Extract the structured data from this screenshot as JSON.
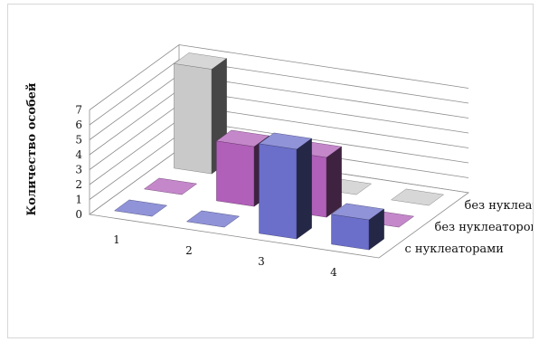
{
  "chart_data": {
    "type": "bar",
    "subtype": "3d-clustered-depth",
    "categories": [
      "1",
      "2",
      "3",
      "4"
    ],
    "series": [
      {
        "name": "с нуклеаторами",
        "values": [
          0,
          0,
          6,
          2
        ],
        "color": "#6b6fc9"
      },
      {
        "name": "без нуклеаторов I",
        "values": [
          0,
          4,
          4,
          0
        ],
        "color": "#b060b8"
      },
      {
        "name": "без нуклеаторов II",
        "values": [
          7,
          0,
          0,
          0
        ],
        "color": "#c9c9c9"
      }
    ],
    "ylabel": "Количество особей",
    "xlabel": "",
    "title": "",
    "yticks": [
      "0",
      "1",
      "2",
      "3",
      "4",
      "5",
      "6",
      "7"
    ],
    "ylim": [
      0,
      7
    ],
    "grid": true
  }
}
